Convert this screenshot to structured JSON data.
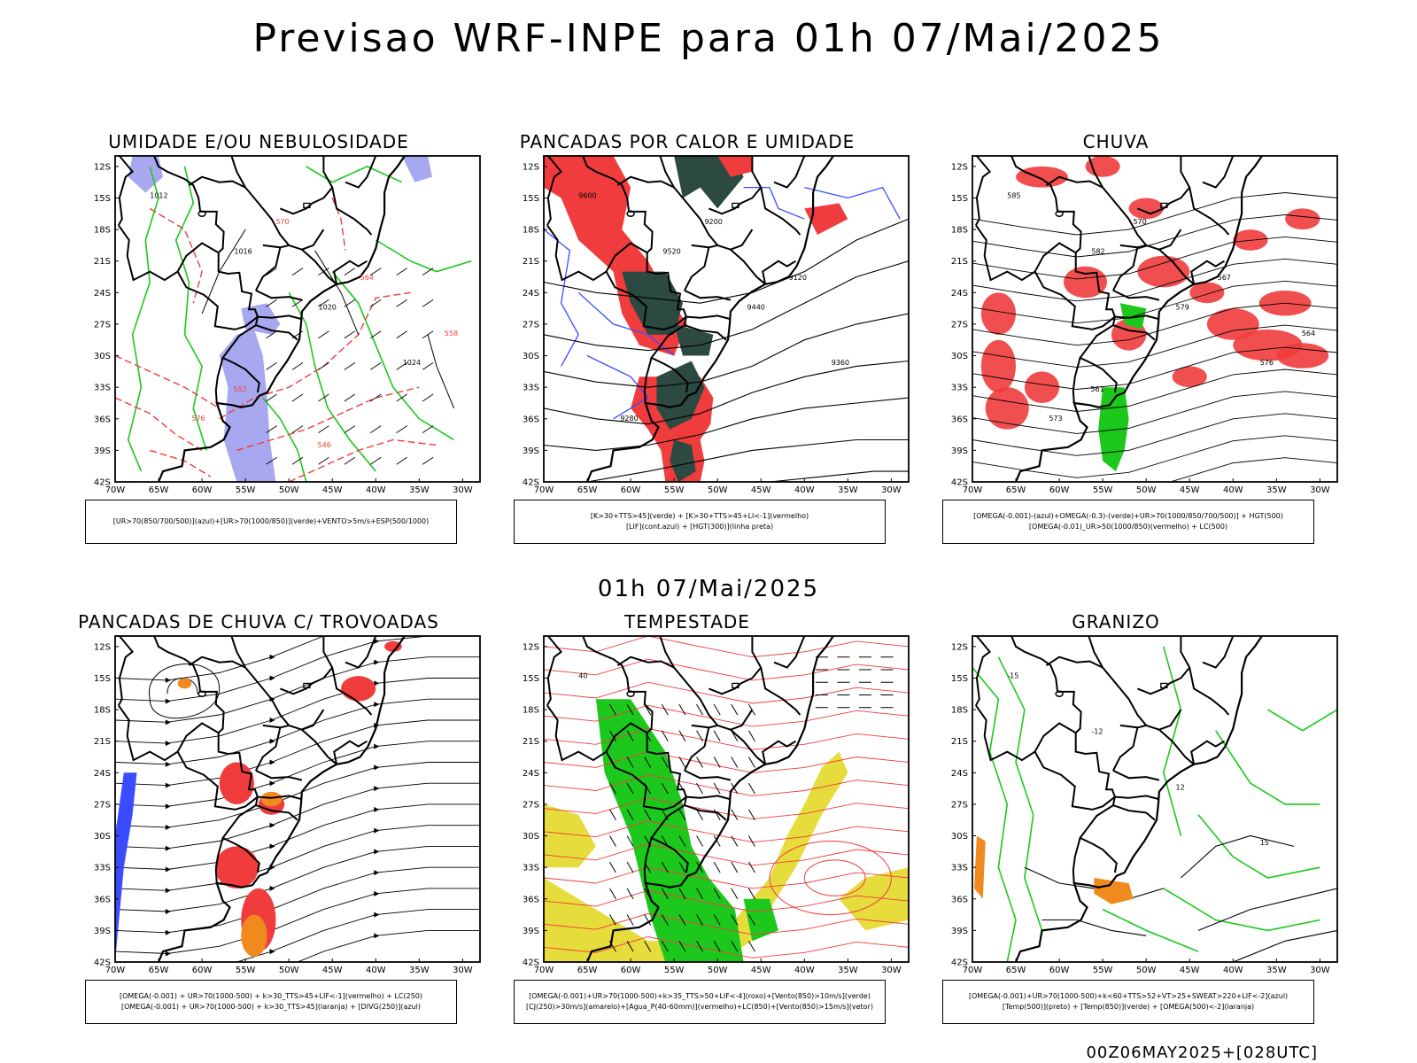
{
  "header": {
    "title": "Previsao WRF-INPE  para 01h 07/Mai/2025"
  },
  "middle": {
    "title": "01h 07/Mai/2025"
  },
  "footer": {
    "stamp": "00Z06MAY2025+[028UTC]"
  },
  "axes": {
    "lat_labels": [
      "12S",
      "15S",
      "18S",
      "21S",
      "24S",
      "27S",
      "30S",
      "33S",
      "36S",
      "39S",
      "42S"
    ],
    "lon_labels": [
      "70W",
      "65W",
      "60W",
      "55W",
      "50W",
      "45W",
      "40W",
      "35W",
      "30W"
    ]
  },
  "panels": [
    {
      "id": "umidade",
      "title": "UMIDADE E/OU NEBULOSIDADE",
      "legend": [
        "[UR>70(850/700/500)](azul)+[UR>70(1000/850)](verde)+VENTO>5m/s+ESP(500/1000)"
      ],
      "contour_labels": [
        "1012",
        "1016",
        "1020",
        "1024",
        "576",
        "570",
        "564",
        "558",
        "552",
        "546"
      ]
    },
    {
      "id": "pancadas_calor",
      "title": "PANCADAS POR CALOR E UMIDADE",
      "legend": [
        "[K>30+TTS>45](verde) + [K>30+TTS>45+LI<-1](vermelho)",
        "[LIF](cont.azul) + [HGT(300)](linha preta)"
      ],
      "contour_labels": [
        "9600",
        "9520",
        "9440",
        "9360",
        "9280",
        "9200",
        "9120"
      ]
    },
    {
      "id": "chuva",
      "title": "CHUVA",
      "legend": [
        "[OMEGA(-0.001)-(azul)+OMEGA(-0.3)-(verde)+UR>70(1000/850/700/500)] + HGT(500)",
        "[OMEGA(-0.01)_UR>50(1000/850)(vermelho) + LC(500)"
      ],
      "contour_labels": [
        "585",
        "582",
        "579",
        "576",
        "573",
        "570",
        "567",
        "564",
        "561"
      ]
    },
    {
      "id": "trovoadas",
      "title": "PANCADAS DE CHUVA C/ TROVOADAS",
      "legend": [
        "[OMEGA(-0.001) + UR>70(1000-500) + k>30_TTS>45+LIF<-1](vermelho) + LC(250)",
        "[OMEGA(-0.001) + UR>70(1000-500) + k>30_TTS>45](laranja) + [DIVG(250)](azul)"
      ],
      "contour_labels": []
    },
    {
      "id": "tempestade",
      "title": "TEMPESTADE",
      "legend": [
        "[OMEGA(-0.001)+UR>70(1000-500)+k>35_TTS>50+LIF<-4](roxo)+[Vento(850)>10m/s](verde)",
        "[CJ(250)>30m/s](amarelo)+[Agua_P(40-60mm)](vermelho)+LC(850)+[Vento(850)>15m/s](vetor)"
      ],
      "contour_labels": [
        "40"
      ]
    },
    {
      "id": "granizo",
      "title": "GRANIZO",
      "legend": [
        "[OMEGA(-0.001)+UR>70(1000-500)+k<60+TTS>52+VT>25+SWEAT>220+LIF<-2](azul)",
        "[Temp(500)](preto) + [Temp(850)](verde) + [OMEGA(500)<-2](laranja)"
      ],
      "contour_labels": [
        "-15",
        "-12",
        "12",
        "15"
      ]
    }
  ],
  "colors": {
    "blue": "#3b4bff",
    "green": "#1dc81d",
    "red": "#f03c3c",
    "orange": "#f08a1e",
    "yellow": "#e6dc3c",
    "darkgreen": "#2c4a42",
    "lavender": "#a8a8f0",
    "black": "#000000"
  }
}
